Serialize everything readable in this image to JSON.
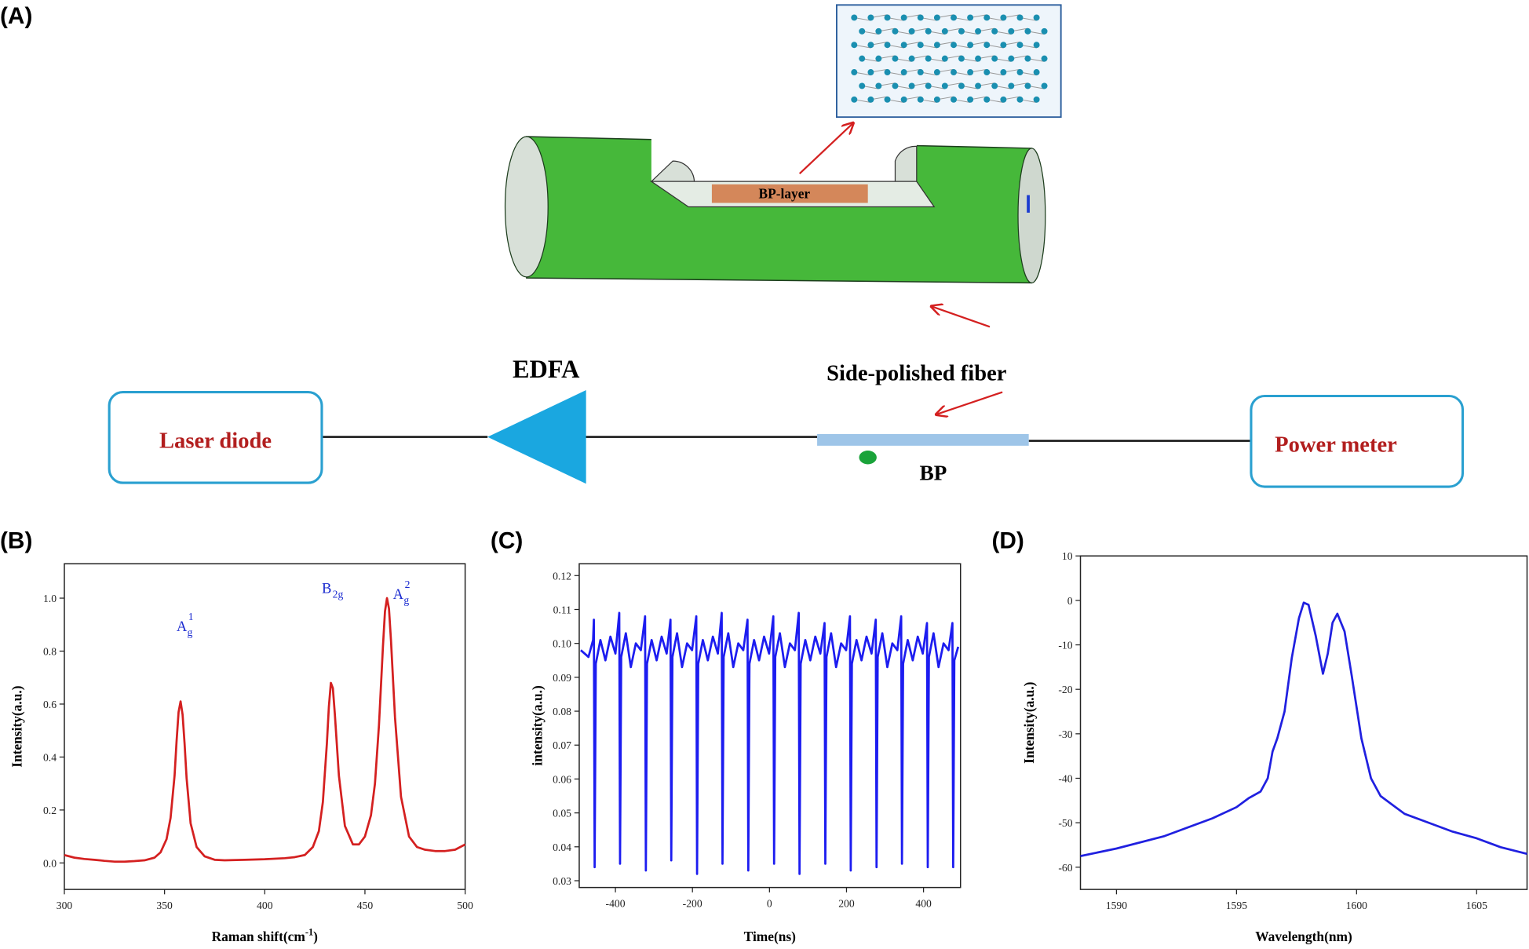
{
  "diagram": {
    "label": "(A)",
    "inset_label": "BP-layer",
    "edfa": "EDFA",
    "fiber_label": "Side-polished fiber",
    "laser": "Laser diode",
    "meter": "Power meter",
    "bp": "BP"
  },
  "chart_data": [
    {
      "type": "line",
      "panel": "(B)",
      "ylabel": "Intensity(a.u.)",
      "xlabel": {
        "text": "Raman shift(cm",
        "sup": "-1",
        "end": ")"
      },
      "color": "#d42020",
      "x": [
        300,
        305,
        310,
        315,
        320,
        325,
        330,
        335,
        340,
        345,
        348,
        351,
        353,
        355,
        356,
        357,
        358,
        359,
        360,
        361,
        363,
        366,
        370,
        375,
        380,
        390,
        400,
        410,
        415,
        420,
        424,
        427,
        429,
        431,
        432,
        433,
        434,
        435,
        437,
        440,
        444,
        447,
        450,
        453,
        455,
        457,
        459,
        460,
        461,
        462,
        463,
        465,
        468,
        472,
        476,
        480,
        485,
        490,
        495,
        500
      ],
      "values": [
        0.03,
        0.02,
        0.015,
        0.012,
        0.008,
        0.005,
        0.005,
        0.007,
        0.01,
        0.02,
        0.04,
        0.09,
        0.17,
        0.33,
        0.46,
        0.57,
        0.61,
        0.56,
        0.45,
        0.32,
        0.15,
        0.06,
        0.025,
        0.012,
        0.01,
        0.012,
        0.014,
        0.018,
        0.022,
        0.03,
        0.06,
        0.12,
        0.23,
        0.45,
        0.59,
        0.68,
        0.66,
        0.56,
        0.33,
        0.14,
        0.07,
        0.07,
        0.1,
        0.18,
        0.3,
        0.52,
        0.82,
        0.95,
        1.0,
        0.96,
        0.84,
        0.55,
        0.25,
        0.1,
        0.06,
        0.05,
        0.045,
        0.045,
        0.05,
        0.07
      ],
      "annotations": [
        {
          "base": "A",
          "sub": "g",
          "sup": "1"
        },
        {
          "base": "B",
          "sub": "2g"
        },
        {
          "base": "A",
          "sub": "g",
          "sup": "2"
        }
      ],
      "xlim": [
        300,
        500
      ],
      "xticks": [
        300,
        350,
        400,
        450,
        500
      ],
      "ylim": [
        -0.1,
        1.13
      ],
      "yticks": [
        {
          "value": 0,
          "label": "0.0"
        },
        0.2,
        0.4,
        0.6,
        0.8,
        {
          "value": 1,
          "label": "1.0"
        }
      ]
    },
    {
      "type": "line",
      "panel": "(C)",
      "ylabel": "intensity(a.u.)",
      "xlabel": "Time(ns)",
      "color": "#1c1cf0",
      "x": [
        -490,
        -470,
        -458,
        -456,
        -454,
        -451,
        -439,
        -426,
        -413,
        -400,
        -390,
        -388,
        -385,
        -373,
        -360,
        -347,
        -334,
        -323,
        -321,
        -318,
        -306,
        -293,
        -280,
        -267,
        -257,
        -255,
        -252,
        -240,
        -227,
        -214,
        -201,
        -190,
        -188,
        -185,
        -173,
        -160,
        -147,
        -134,
        -124,
        -122,
        -119,
        -107,
        -94,
        -81,
        -68,
        -57,
        -55,
        -52,
        -40,
        -27,
        -14,
        -1,
        10,
        12,
        15,
        27,
        40,
        53,
        66,
        76,
        78,
        81,
        93,
        106,
        119,
        132,
        143,
        145,
        148,
        160,
        173,
        186,
        199,
        209,
        211,
        214,
        226,
        239,
        252,
        265,
        276,
        278,
        281,
        293,
        306,
        319,
        332,
        342,
        344,
        347,
        359,
        372,
        385,
        398,
        409,
        411,
        414,
        426,
        439,
        452,
        465,
        475,
        477,
        480,
        490
      ],
      "values": [
        0.098,
        0.096,
        0.101,
        0.107,
        0.034,
        0.094,
        0.101,
        0.095,
        0.102,
        0.097,
        0.109,
        0.035,
        0.096,
        0.103,
        0.093,
        0.1,
        0.098,
        0.108,
        0.033,
        0.094,
        0.101,
        0.095,
        0.102,
        0.097,
        0.107,
        0.036,
        0.096,
        0.103,
        0.093,
        0.1,
        0.098,
        0.108,
        0.032,
        0.094,
        0.101,
        0.095,
        0.102,
        0.097,
        0.109,
        0.035,
        0.096,
        0.103,
        0.093,
        0.1,
        0.098,
        0.107,
        0.033,
        0.094,
        0.101,
        0.095,
        0.102,
        0.097,
        0.108,
        0.035,
        0.096,
        0.103,
        0.093,
        0.1,
        0.098,
        0.109,
        0.032,
        0.094,
        0.101,
        0.095,
        0.102,
        0.097,
        0.106,
        0.035,
        0.096,
        0.103,
        0.093,
        0.1,
        0.098,
        0.108,
        0.033,
        0.094,
        0.101,
        0.095,
        0.102,
        0.097,
        0.107,
        0.034,
        0.096,
        0.103,
        0.093,
        0.1,
        0.098,
        0.108,
        0.035,
        0.094,
        0.101,
        0.095,
        0.102,
        0.097,
        0.106,
        0.034,
        0.096,
        0.103,
        0.093,
        0.1,
        0.098,
        0.106,
        0.034,
        0.095,
        0.099
      ],
      "xlim": [
        -494,
        496
      ],
      "xticks": [
        -400,
        -200,
        0,
        200,
        400
      ],
      "ylim": [
        0.028,
        0.1235
      ],
      "yticks": [
        0.03,
        0.04,
        0.05,
        0.06,
        0.07,
        0.08,
        0.09,
        {
          "value": 0.1,
          "label": "0.10"
        },
        0.11,
        0.12
      ]
    },
    {
      "type": "line",
      "panel": "(D)",
      "ylabel": "Intensity(a.u.)",
      "xlabel": "Wavelength(nm)",
      "color": "#2020e0",
      "x": [
        1588.5,
        1590,
        1592,
        1594,
        1595,
        1595.5,
        1596,
        1596.3,
        1596.5,
        1596.7,
        1597,
        1597.3,
        1597.6,
        1597.8,
        1598,
        1598.3,
        1598.6,
        1598.8,
        1599,
        1599.2,
        1599.5,
        1599.8,
        1600.2,
        1600.6,
        1601,
        1602,
        1603,
        1604,
        1605,
        1606,
        1607.1
      ],
      "values": [
        -57.5,
        -55.8,
        -53,
        -49,
        -46.5,
        -44.5,
        -43,
        -40,
        -34,
        -31,
        -25,
        -13,
        -4,
        -0.5,
        -1,
        -8,
        -16.5,
        -12,
        -5,
        -3,
        -7,
        -17,
        -31,
        -40,
        -44,
        -48,
        -50,
        -52,
        -53.5,
        -55.5,
        -57
      ],
      "xlim": [
        1588.5,
        1607.1
      ],
      "xticks": [
        1590,
        1595,
        1600,
        1605
      ],
      "ylim": [
        -65,
        10
      ],
      "yticks": [
        -60,
        -50,
        -40,
        -30,
        -20,
        -10,
        0,
        10
      ]
    }
  ]
}
